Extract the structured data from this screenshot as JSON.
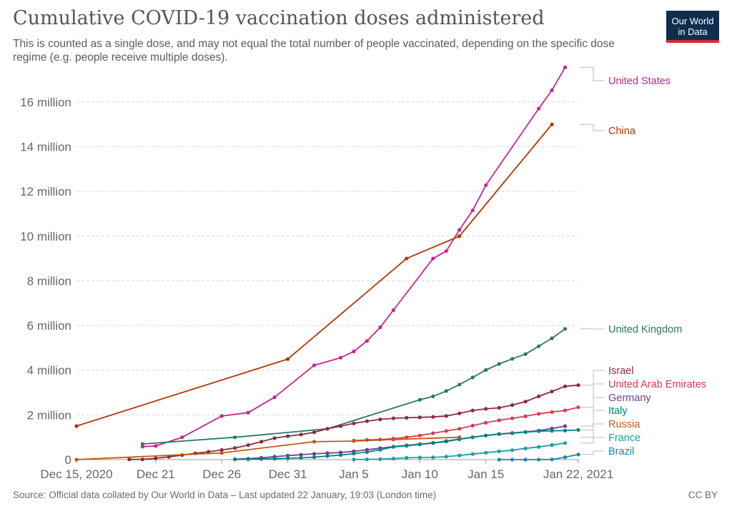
{
  "header": {
    "title": "Cumulative COVID-19 vaccination doses administered",
    "subtitle": "This is counted as a single dose, and may not equal the total number of people vaccinated, depending on the specific dose regime (e.g. people receive multiple doses).",
    "logo_line1": "Our World",
    "logo_line2": "in Data"
  },
  "footer": {
    "source": "Official data collated by Our World in Data – Last updated 22 January, 19:03 (London time)",
    "source_prefix": "Source: ",
    "license": "CC BY"
  },
  "chart_data": {
    "type": "line",
    "title": "Cumulative COVID-19 vaccination doses administered",
    "xlabel": "",
    "ylabel": "",
    "x_unit": "day (0 = Dec 15, 2020)",
    "xlim": [
      0,
      38
    ],
    "ylim": [
      0,
      17500000
    ],
    "x_ticks": [
      {
        "day": 0,
        "label": "Dec 15, 2020"
      },
      {
        "day": 6,
        "label": "Dec 21"
      },
      {
        "day": 11,
        "label": "Dec 26"
      },
      {
        "day": 16,
        "label": "Dec 31"
      },
      {
        "day": 21,
        "label": "Jan 5"
      },
      {
        "day": 26,
        "label": "Jan 10"
      },
      {
        "day": 31,
        "label": "Jan 15"
      },
      {
        "day": 38,
        "label": "Jan 22, 2021"
      }
    ],
    "y_ticks": [
      {
        "value": 0,
        "label": "0"
      },
      {
        "value": 2000000,
        "label": "2 million"
      },
      {
        "value": 4000000,
        "label": "4 million"
      },
      {
        "value": 6000000,
        "label": "6 million"
      },
      {
        "value": 8000000,
        "label": "8 million"
      },
      {
        "value": 10000000,
        "label": "10 million"
      },
      {
        "value": 12000000,
        "label": "12 million"
      },
      {
        "value": 14000000,
        "label": "14 million"
      },
      {
        "value": 16000000,
        "label": "16 million"
      }
    ],
    "grid": true,
    "legend": "right (labels at line ends)",
    "series": [
      {
        "name": "United States",
        "color": "#c9258e",
        "label_y": 17450000,
        "points": [
          [
            5,
            580000
          ],
          [
            6,
            610000
          ],
          [
            8,
            1000000
          ],
          [
            11,
            1950000
          ],
          [
            13,
            2100000
          ],
          [
            15,
            2790000
          ],
          [
            18,
            4220000
          ],
          [
            20,
            4560000
          ],
          [
            21,
            4840000
          ],
          [
            22,
            5310000
          ],
          [
            23,
            5920000
          ],
          [
            24,
            6690000
          ],
          [
            27,
            9000000
          ],
          [
            28,
            9330000
          ],
          [
            29,
            10280000
          ],
          [
            30,
            11150000
          ],
          [
            31,
            12280000
          ],
          [
            35,
            15710000
          ],
          [
            36,
            16530000
          ],
          [
            37,
            17550000
          ]
        ]
      },
      {
        "name": "China",
        "color": "#b13507",
        "label_y": 14950000,
        "points": [
          [
            0,
            1500000
          ],
          [
            16,
            4500000
          ],
          [
            25,
            9000000
          ],
          [
            29,
            10000000
          ],
          [
            36,
            15000000
          ]
        ]
      },
      {
        "name": "United Kingdom",
        "color": "#2a7767",
        "label_y": 5870000,
        "points": [
          [
            5,
            700000
          ],
          [
            12,
            1000000
          ],
          [
            19,
            1380000
          ],
          [
            26,
            2680000
          ],
          [
            27,
            2830000
          ],
          [
            28,
            3070000
          ],
          [
            29,
            3360000
          ],
          [
            30,
            3680000
          ],
          [
            31,
            4010000
          ],
          [
            32,
            4280000
          ],
          [
            33,
            4510000
          ],
          [
            34,
            4720000
          ],
          [
            35,
            5070000
          ],
          [
            36,
            5430000
          ],
          [
            37,
            5850000
          ]
        ]
      },
      {
        "name": "Israel",
        "color": "#8a2c3e",
        "label_y": 3950000,
        "points": [
          [
            4,
            10000
          ],
          [
            5,
            10000
          ],
          [
            6,
            60000
          ],
          [
            7,
            120000
          ],
          [
            8,
            200000
          ],
          [
            9,
            280000
          ],
          [
            10,
            350000
          ],
          [
            11,
            430000
          ],
          [
            12,
            520000
          ],
          [
            13,
            650000
          ],
          [
            14,
            800000
          ],
          [
            15,
            960000
          ],
          [
            16,
            1050000
          ],
          [
            17,
            1120000
          ],
          [
            18,
            1220000
          ],
          [
            19,
            1380000
          ],
          [
            20,
            1500000
          ],
          [
            21,
            1620000
          ],
          [
            22,
            1720000
          ],
          [
            23,
            1800000
          ],
          [
            24,
            1850000
          ],
          [
            25,
            1870000
          ],
          [
            26,
            1890000
          ],
          [
            27,
            1910000
          ],
          [
            28,
            1950000
          ],
          [
            29,
            2070000
          ],
          [
            30,
            2200000
          ],
          [
            31,
            2270000
          ],
          [
            32,
            2320000
          ],
          [
            33,
            2440000
          ],
          [
            34,
            2600000
          ],
          [
            35,
            2830000
          ],
          [
            36,
            3050000
          ],
          [
            37,
            3280000
          ],
          [
            38,
            3330000
          ]
        ]
      },
      {
        "name": "United Arab Emirates",
        "color": "#d73c50",
        "label_y": 3330000,
        "points": [
          [
            21,
            850000
          ],
          [
            22,
            880000
          ],
          [
            23,
            900000
          ],
          [
            24,
            940000
          ],
          [
            25,
            1000000
          ],
          [
            26,
            1080000
          ],
          [
            27,
            1180000
          ],
          [
            28,
            1280000
          ],
          [
            29,
            1380000
          ],
          [
            30,
            1520000
          ],
          [
            31,
            1650000
          ],
          [
            32,
            1760000
          ],
          [
            33,
            1850000
          ],
          [
            34,
            1940000
          ],
          [
            35,
            2050000
          ],
          [
            36,
            2130000
          ],
          [
            37,
            2200000
          ],
          [
            38,
            2340000
          ]
        ]
      },
      {
        "name": "Germany",
        "color": "#6d3e91",
        "label_y": 2700000,
        "points": [
          [
            12,
            20000
          ],
          [
            13,
            40000
          ],
          [
            14,
            80000
          ],
          [
            15,
            130000
          ],
          [
            16,
            180000
          ],
          [
            17,
            220000
          ],
          [
            18,
            260000
          ],
          [
            19,
            290000
          ],
          [
            20,
            320000
          ],
          [
            21,
            370000
          ],
          [
            22,
            440000
          ],
          [
            23,
            510000
          ],
          [
            24,
            580000
          ],
          [
            25,
            640000
          ],
          [
            26,
            690000
          ],
          [
            27,
            750000
          ],
          [
            28,
            830000
          ],
          [
            29,
            920000
          ],
          [
            30,
            1000000
          ],
          [
            31,
            1080000
          ],
          [
            32,
            1150000
          ],
          [
            33,
            1190000
          ],
          [
            34,
            1240000
          ],
          [
            35,
            1300000
          ],
          [
            36,
            1390000
          ],
          [
            37,
            1500000
          ]
        ]
      },
      {
        "name": "Italy",
        "color": "#00847e",
        "label_y": 2080000,
        "points": [
          [
            12,
            10000
          ],
          [
            13,
            20000
          ],
          [
            14,
            30000
          ],
          [
            15,
            40000
          ],
          [
            16,
            60000
          ],
          [
            17,
            80000
          ],
          [
            18,
            110000
          ],
          [
            19,
            160000
          ],
          [
            20,
            200000
          ],
          [
            21,
            270000
          ],
          [
            22,
            340000
          ],
          [
            23,
            440000
          ],
          [
            24,
            570000
          ],
          [
            25,
            620000
          ],
          [
            26,
            680000
          ],
          [
            27,
            740000
          ],
          [
            28,
            810000
          ],
          [
            29,
            910000
          ],
          [
            30,
            1000000
          ],
          [
            31,
            1080000
          ],
          [
            32,
            1140000
          ],
          [
            33,
            1180000
          ],
          [
            34,
            1230000
          ],
          [
            35,
            1270000
          ],
          [
            36,
            1290000
          ],
          [
            37,
            1300000
          ],
          [
            38,
            1330000
          ]
        ]
      },
      {
        "name": "Russia",
        "color": "#c05917",
        "label_y": 1480000,
        "points": [
          [
            0,
            0
          ],
          [
            11,
            300000
          ],
          [
            18,
            800000
          ],
          [
            21,
            830000
          ],
          [
            24,
            900000
          ],
          [
            29,
            1000000
          ]
        ]
      },
      {
        "name": "France",
        "color": "#18a09a",
        "label_y": 860000,
        "points": [
          [
            21,
            5000
          ],
          [
            22,
            10000
          ],
          [
            23,
            20000
          ],
          [
            24,
            45000
          ],
          [
            25,
            80000
          ],
          [
            26,
            95000
          ],
          [
            27,
            100000
          ],
          [
            28,
            130000
          ],
          [
            29,
            190000
          ],
          [
            30,
            250000
          ],
          [
            31,
            310000
          ],
          [
            32,
            370000
          ],
          [
            33,
            420000
          ],
          [
            34,
            500000
          ],
          [
            35,
            570000
          ],
          [
            36,
            650000
          ],
          [
            37,
            740000
          ]
        ]
      },
      {
        "name": "Brazil",
        "color": "#1f86b0",
        "label_y": 250000,
        "points": [
          [
            32,
            0
          ],
          [
            33,
            0
          ],
          [
            34,
            0
          ],
          [
            35,
            0
          ],
          [
            36,
            10000
          ],
          [
            37,
            110000
          ],
          [
            38,
            230000
          ]
        ]
      }
    ]
  }
}
